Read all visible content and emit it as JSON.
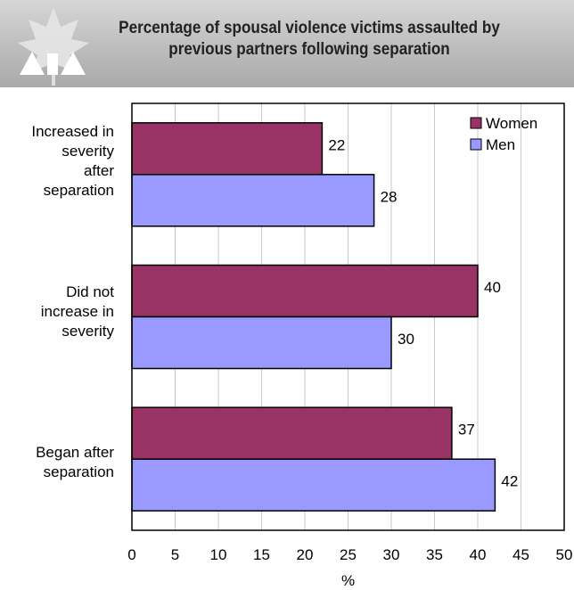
{
  "header": {
    "title_lines": [
      "Percentage of spousal violence victims assaulted by",
      "previous partners following separation"
    ]
  },
  "chart_data": {
    "type": "bar",
    "orientation": "horizontal",
    "categories": [
      [
        "Increased in",
        "severity",
        "after",
        "separation"
      ],
      [
        "Did not",
        "increase in",
        "severity"
      ],
      [
        "Began after",
        "separation"
      ]
    ],
    "series": [
      {
        "name": "Women",
        "color": "#993366",
        "values": [
          22,
          40,
          37
        ]
      },
      {
        "name": "Men",
        "color": "#9999ff",
        "values": [
          28,
          30,
          42
        ]
      }
    ],
    "xlabel": "%",
    "xlim": [
      0,
      50
    ],
    "xticks": [
      0,
      5,
      10,
      15,
      20,
      25,
      30,
      35,
      40,
      45,
      50
    ],
    "grid": true,
    "legend_position": "top-right"
  }
}
